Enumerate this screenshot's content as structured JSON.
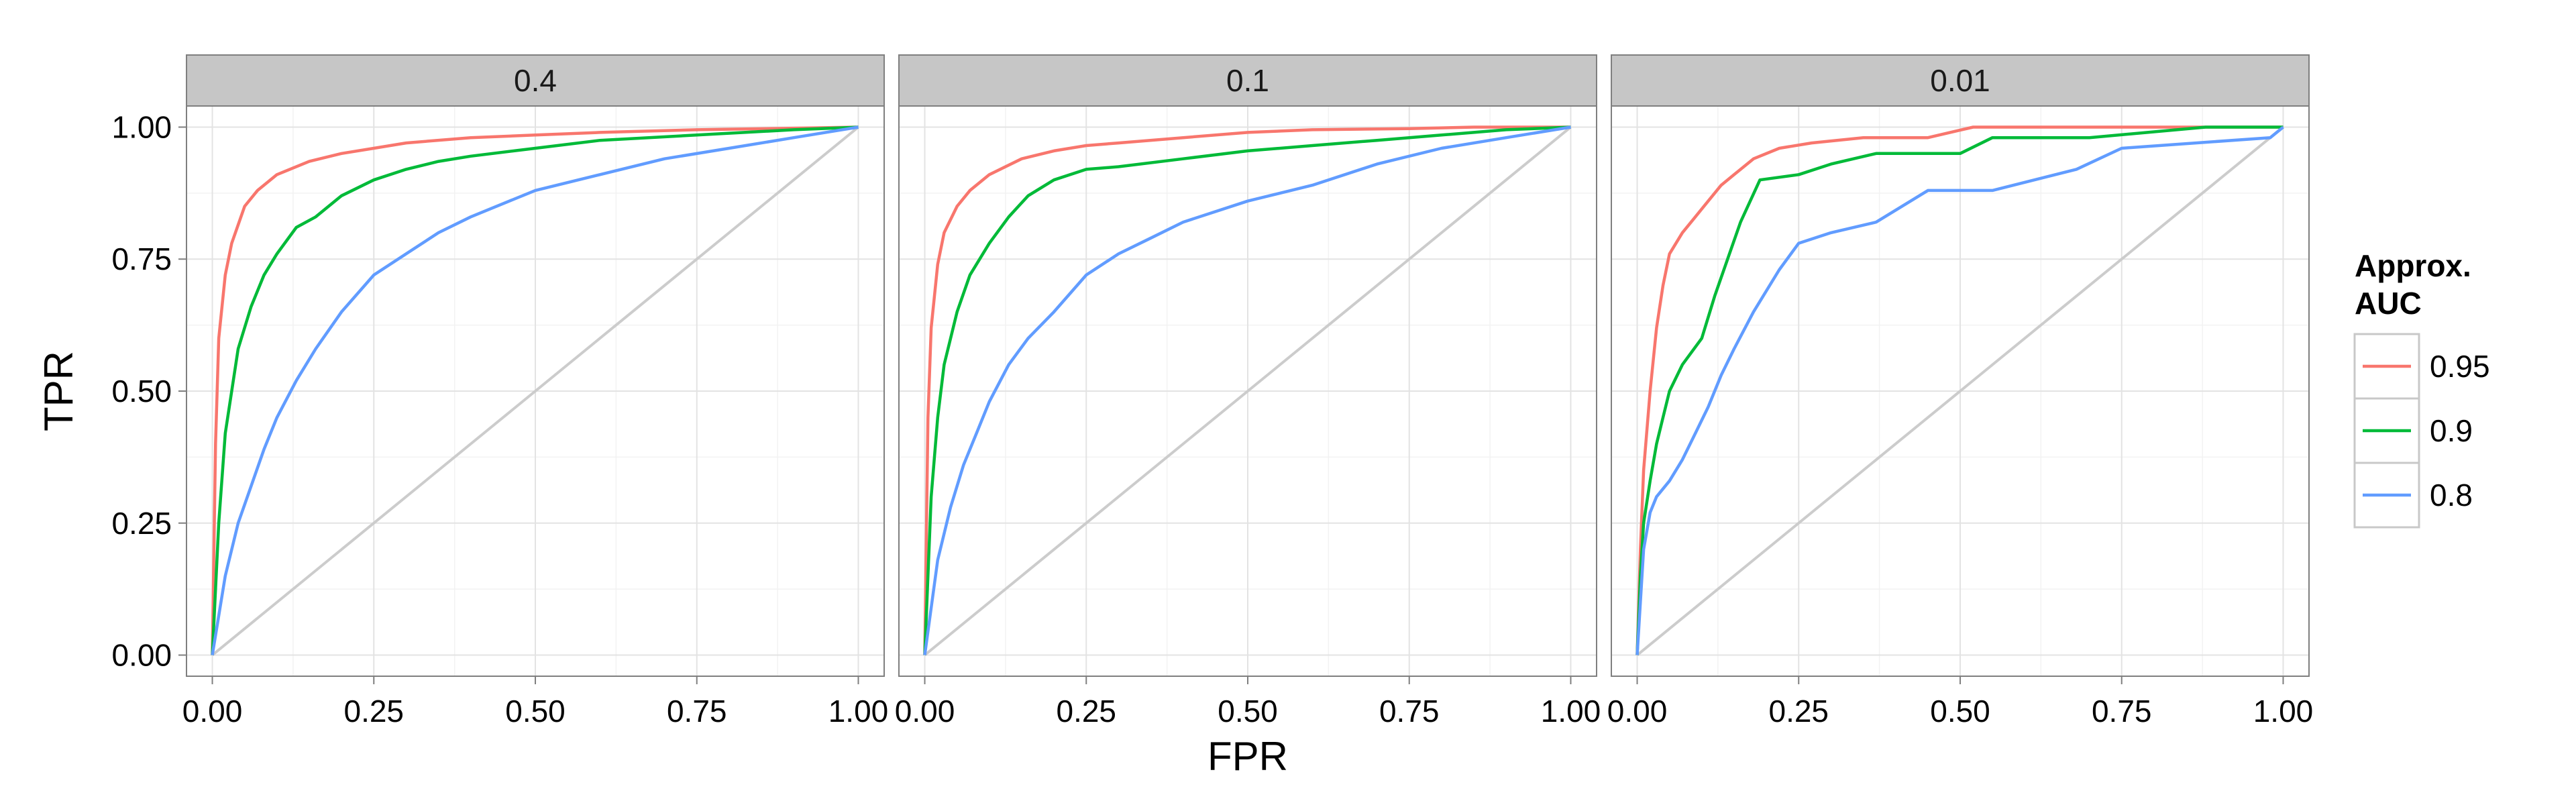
{
  "chart_data": {
    "type": "line",
    "facets": [
      "0.4",
      "0.1",
      "0.01"
    ],
    "xlabel": "FPR",
    "ylabel": "TPR",
    "xlim": [
      0,
      1
    ],
    "ylim": [
      0,
      1
    ],
    "x_ticks": [
      "0.00",
      "0.25",
      "0.50",
      "0.75",
      "1.00"
    ],
    "y_ticks": [
      "0.00",
      "0.25",
      "0.50",
      "0.75",
      "1.00"
    ],
    "grid": true,
    "diagonal_reference_line": true,
    "legend": {
      "title_lines": [
        "Approx.",
        "AUC"
      ],
      "position": "right",
      "entries": [
        "0.95",
        "0.9",
        "0.8"
      ]
    },
    "colors": {
      "0.95": "#F8766D",
      "0.9": "#00BA38",
      "0.8": "#619CFF"
    },
    "panels": [
      {
        "facet": "0.4",
        "series": [
          {
            "name": "0.95",
            "x": [
              0,
              0.005,
              0.01,
              0.02,
              0.03,
              0.05,
              0.07,
              0.1,
              0.15,
              0.2,
              0.25,
              0.3,
              0.4,
              0.5,
              0.6,
              0.75,
              0.9,
              1
            ],
            "y": [
              0,
              0.4,
              0.6,
              0.72,
              0.78,
              0.85,
              0.88,
              0.91,
              0.935,
              0.95,
              0.96,
              0.97,
              0.98,
              0.985,
              0.99,
              0.995,
              0.998,
              1
            ]
          },
          {
            "name": "0.9",
            "x": [
              0,
              0.01,
              0.02,
              0.04,
              0.06,
              0.08,
              0.1,
              0.13,
              0.16,
              0.2,
              0.25,
              0.3,
              0.35,
              0.4,
              0.5,
              0.6,
              0.75,
              0.9,
              1
            ],
            "y": [
              0,
              0.25,
              0.42,
              0.58,
              0.66,
              0.72,
              0.76,
              0.81,
              0.83,
              0.87,
              0.9,
              0.92,
              0.935,
              0.945,
              0.96,
              0.975,
              0.985,
              0.995,
              1
            ]
          },
          {
            "name": "0.8",
            "x": [
              0,
              0.02,
              0.04,
              0.06,
              0.08,
              0.1,
              0.13,
              0.16,
              0.2,
              0.25,
              0.3,
              0.35,
              0.4,
              0.5,
              0.6,
              0.7,
              0.8,
              0.9,
              1
            ],
            "y": [
              0,
              0.15,
              0.25,
              0.32,
              0.39,
              0.45,
              0.52,
              0.58,
              0.65,
              0.72,
              0.76,
              0.8,
              0.83,
              0.88,
              0.91,
              0.94,
              0.96,
              0.98,
              1
            ]
          }
        ]
      },
      {
        "facet": "0.1",
        "series": [
          {
            "name": "0.95",
            "x": [
              0,
              0.005,
              0.01,
              0.02,
              0.03,
              0.05,
              0.07,
              0.1,
              0.15,
              0.2,
              0.25,
              0.3,
              0.4,
              0.5,
              0.6,
              0.75,
              0.85,
              1
            ],
            "y": [
              0,
              0.45,
              0.62,
              0.74,
              0.8,
              0.85,
              0.88,
              0.91,
              0.94,
              0.955,
              0.965,
              0.97,
              0.98,
              0.99,
              0.995,
              0.997,
              1,
              1
            ]
          },
          {
            "name": "0.9",
            "x": [
              0,
              0.01,
              0.02,
              0.03,
              0.05,
              0.07,
              0.1,
              0.13,
              0.16,
              0.2,
              0.25,
              0.3,
              0.4,
              0.5,
              0.6,
              0.7,
              0.8,
              0.9,
              1
            ],
            "y": [
              0,
              0.3,
              0.45,
              0.55,
              0.65,
              0.72,
              0.78,
              0.83,
              0.87,
              0.9,
              0.92,
              0.925,
              0.94,
              0.955,
              0.965,
              0.975,
              0.985,
              0.995,
              1
            ]
          },
          {
            "name": "0.8",
            "x": [
              0,
              0.02,
              0.04,
              0.06,
              0.08,
              0.1,
              0.13,
              0.16,
              0.2,
              0.25,
              0.3,
              0.35,
              0.4,
              0.5,
              0.6,
              0.7,
              0.8,
              0.9,
              1
            ],
            "y": [
              0,
              0.18,
              0.28,
              0.36,
              0.42,
              0.48,
              0.55,
              0.6,
              0.65,
              0.72,
              0.76,
              0.79,
              0.82,
              0.86,
              0.89,
              0.93,
              0.96,
              0.98,
              1
            ]
          }
        ]
      },
      {
        "facet": "0.01",
        "series": [
          {
            "name": "0.95",
            "x": [
              0,
              0.005,
              0.01,
              0.02,
              0.03,
              0.04,
              0.05,
              0.07,
              0.09,
              0.11,
              0.13,
              0.15,
              0.18,
              0.22,
              0.27,
              0.35,
              0.45,
              0.52,
              0.6,
              0.8,
              1
            ],
            "y": [
              0,
              0.2,
              0.35,
              0.5,
              0.62,
              0.7,
              0.76,
              0.8,
              0.83,
              0.86,
              0.89,
              0.91,
              0.94,
              0.96,
              0.97,
              0.98,
              0.98,
              1,
              1,
              1,
              1
            ]
          },
          {
            "name": "0.9",
            "x": [
              0,
              0.005,
              0.01,
              0.02,
              0.03,
              0.04,
              0.05,
              0.07,
              0.1,
              0.12,
              0.14,
              0.16,
              0.19,
              0.25,
              0.3,
              0.37,
              0.5,
              0.55,
              0.7,
              0.88,
              1
            ],
            "y": [
              0,
              0.15,
              0.25,
              0.33,
              0.4,
              0.45,
              0.5,
              0.55,
              0.6,
              0.68,
              0.75,
              0.82,
              0.9,
              0.91,
              0.93,
              0.95,
              0.95,
              0.98,
              0.98,
              1,
              1
            ]
          },
          {
            "name": "0.8",
            "x": [
              0,
              0.005,
              0.01,
              0.02,
              0.03,
              0.05,
              0.07,
              0.09,
              0.11,
              0.13,
              0.15,
              0.18,
              0.22,
              0.25,
              0.3,
              0.37,
              0.45,
              0.55,
              0.68,
              0.75,
              0.98,
              1
            ],
            "y": [
              0,
              0.1,
              0.2,
              0.27,
              0.3,
              0.33,
              0.37,
              0.42,
              0.47,
              0.53,
              0.58,
              0.65,
              0.73,
              0.78,
              0.8,
              0.82,
              0.88,
              0.88,
              0.92,
              0.96,
              0.98,
              1
            ]
          }
        ]
      }
    ]
  }
}
